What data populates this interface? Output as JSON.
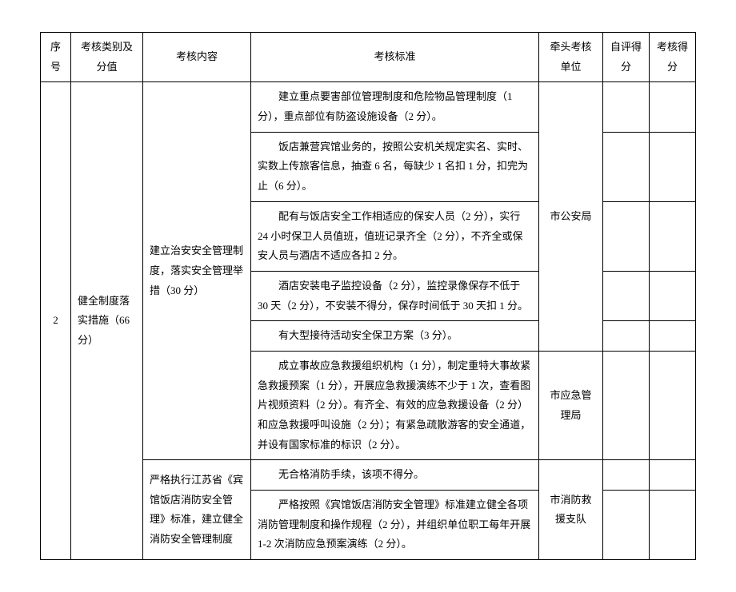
{
  "headers": {
    "seq": "序号",
    "category": "考核类别及分值",
    "content": "考核内容",
    "criteria": "考核标准",
    "unit": "牵头考核单位",
    "self_score": "自评得分",
    "final_score": "考核得分"
  },
  "row": {
    "seq": "2",
    "category": "健全制度落实措施（66 分）",
    "content1": "建立治安安全管理制度，落实安全管理举措（30 分）",
    "content2": "严格执行江苏省《宾馆饭店消防安全管理》标准，建立健全消防安全管理制度",
    "criteria": {
      "c1": "建立重点要害部位管理制度和危险物品管理制度（1 分），重点部位有防盗设施设备（2 分）。",
      "c2": "饭店兼营宾馆业务的，按照公安机关规定实名、实时、实数上传旅客信息，抽查 6 名，每缺少 1 名扣 1 分，扣完为止（6 分）。",
      "c3": "配有与饭店安全工作相适应的保安人员（2 分），实行 24 小时保卫人员值班，值班记录齐全（2 分），不齐全或保安人员与酒店不适应各扣 2 分。",
      "c4": "酒店安装电子监控设备（2 分），监控录像保存不低于 30 天（2 分），不安装不得分，保存时间低于 30 天扣 1 分。",
      "c5": "有大型接待活动安全保卫方案（3 分）。",
      "c6": "成立事故应急救援组织机构（1 分），制定重特大事故紧急救援预案（1 分），开展应急救援演练不少于 1 次，查看图片视频资料（2 分）。有齐全、有效的应急救援设备（2 分）和应急救援呼叫设施（2 分）；有紧急疏散游客的安全通道，并设有国家标准的标识（2 分）。",
      "c7": "无合格消防手续，该项不得分。",
      "c8": "严格按照《宾馆饭店消防安全管理》标准建立健全各项消防管理制度和操作规程（2 分），并组织单位职工每年开展 1-2 次消防应急预案演练（2 分）。"
    },
    "unit1": "市公安局",
    "unit2": "市应急管理局",
    "unit3": "市消防救援支队"
  }
}
